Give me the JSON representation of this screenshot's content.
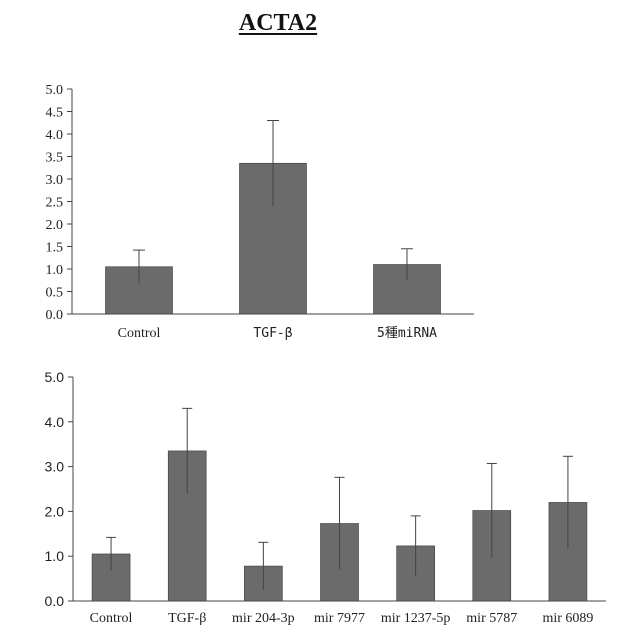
{
  "title": "ACTA2",
  "colors": {
    "bar": "#6b6b6b",
    "bar_stroke": "#3a3a3a",
    "axis": "#444444",
    "error": "#444444"
  },
  "chart_data": [
    {
      "type": "bar",
      "categories": [
        "Control",
        "TGF-β",
        "5種miRNA"
      ],
      "values": [
        1.05,
        3.35,
        1.1
      ],
      "errors": [
        0.37,
        0.95,
        0.35
      ],
      "ylim": [
        0,
        5.0
      ],
      "yticks": [
        "0.0",
        "0.5",
        "1.0",
        "1.5",
        "2.0",
        "2.5",
        "3.0",
        "3.5",
        "4.0",
        "4.5",
        "5.0"
      ],
      "xlabel": "",
      "ylabel": "",
      "grid": false
    },
    {
      "type": "bar",
      "categories": [
        "Control",
        "TGF-β",
        "mir 204-3p",
        "mir 7977",
        "mir 1237-5p",
        "mir 5787",
        "mir 6089"
      ],
      "values": [
        1.05,
        3.35,
        0.78,
        1.73,
        1.23,
        2.02,
        2.2
      ],
      "errors": [
        0.37,
        0.95,
        0.53,
        1.03,
        0.67,
        1.05,
        1.03
      ],
      "ylim": [
        0,
        5.0
      ],
      "yticks": [
        "0.0",
        "1.0",
        "2.0",
        "3.0",
        "4.0",
        "5.0"
      ],
      "xlabel": "",
      "ylabel": "",
      "grid": false
    }
  ]
}
